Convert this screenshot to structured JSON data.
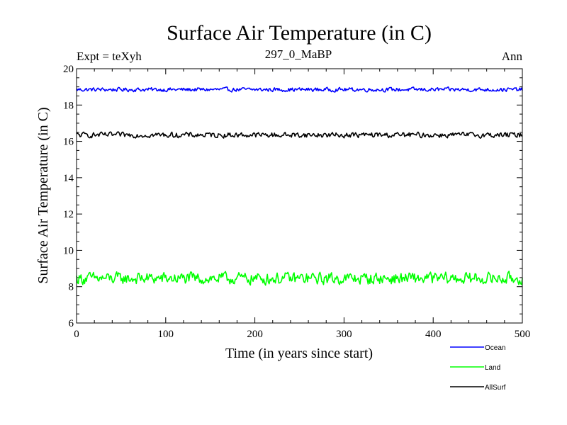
{
  "chart_data": {
    "type": "line",
    "title": "Surface Air Temperature (in C)",
    "subtitle_left": "Expt = teXyh",
    "subtitle_center": "297_0_MaBP",
    "subtitle_right": "Ann",
    "xlabel": "Time (in years since start)",
    "ylabel": "Surface Air Temperature (in C)",
    "xlim": [
      0,
      500
    ],
    "ylim": [
      6,
      20
    ],
    "xticks": [
      0,
      100,
      200,
      300,
      400,
      500
    ],
    "yticks": [
      6,
      8,
      10,
      12,
      14,
      16,
      18,
      20
    ],
    "grid": false,
    "legend_position": "bottom-right",
    "series": [
      {
        "name": "Ocean",
        "color": "#0000ff",
        "mean": 18.85,
        "amplitude": 0.15,
        "x_range": [
          0,
          500
        ],
        "points": 501
      },
      {
        "name": "Land",
        "color": "#00ff00",
        "mean": 8.45,
        "amplitude": 0.45,
        "x_range": [
          0,
          500
        ],
        "points": 501
      },
      {
        "name": "AllSurf",
        "color": "#000000",
        "mean": 16.35,
        "amplitude": 0.2,
        "x_range": [
          0,
          500
        ],
        "points": 501
      }
    ]
  }
}
